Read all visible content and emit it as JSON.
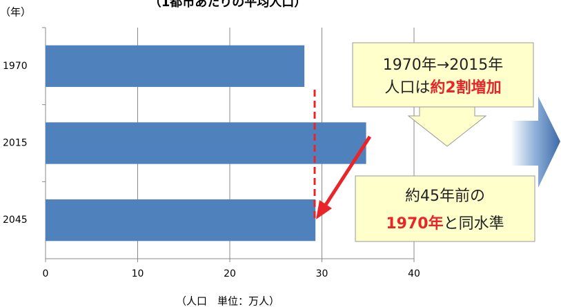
{
  "chart_data": {
    "type": "bar",
    "orientation": "horizontal",
    "title": "（1都市あたりの平均人口）",
    "y_label": "（年）",
    "x_label": "（人口　単位：万人）",
    "categories": [
      "1970",
      "2015",
      "2045"
    ],
    "values": [
      28.1,
      34.8,
      29.3
    ],
    "color": "#4f81bd",
    "xlim": [
      0,
      40
    ],
    "xticks": [
      0,
      10,
      20,
      30,
      40
    ],
    "grid": true,
    "annotations": [
      "1970年→2015年",
      "人口は",
      "約2割増加",
      "約45年前の",
      "1970年",
      "と同水準"
    ]
  }
}
